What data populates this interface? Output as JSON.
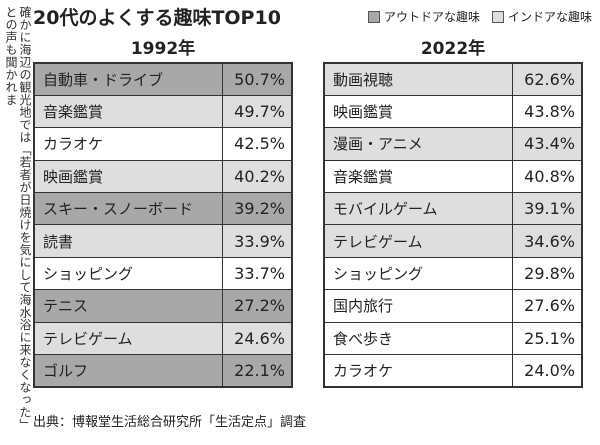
{
  "title": "20代のよくする趣味TOP10",
  "legend": [
    {
      "label": "アウトドアな趣味",
      "color": "#a8a8a8"
    },
    {
      "label": "インドアな趣味",
      "color": "#dedede"
    }
  ],
  "tables": [
    {
      "year": "1992年",
      "rows": [
        {
          "label": "自動車・ドライブ",
          "value": "50.7%",
          "color": "#a8a8a8"
        },
        {
          "label": "音楽鑑賞",
          "value": "49.7%",
          "color": "#dedede"
        },
        {
          "label": "カラオケ",
          "value": "42.5%",
          "color": "#ffffff"
        },
        {
          "label": "映画鑑賞",
          "value": "40.2%",
          "color": "#dedede"
        },
        {
          "label": "スキー・スノーボード",
          "value": "39.2%",
          "color": "#a8a8a8"
        },
        {
          "label": "読書",
          "value": "33.9%",
          "color": "#dedede"
        },
        {
          "label": "ショッピング",
          "value": "33.7%",
          "color": "#ffffff"
        },
        {
          "label": "テニス",
          "value": "27.2%",
          "color": "#a8a8a8"
        },
        {
          "label": "テレビゲーム",
          "value": "24.6%",
          "color": "#dedede"
        },
        {
          "label": "ゴルフ",
          "value": "22.1%",
          "color": "#a8a8a8"
        }
      ]
    },
    {
      "year": "2022年",
      "rows": [
        {
          "label": "動画視聴",
          "value": "62.6%",
          "color": "#dedede"
        },
        {
          "label": "映画鑑賞",
          "value": "43.8%",
          "color": "#ffffff"
        },
        {
          "label": "漫画・アニメ",
          "value": "43.4%",
          "color": "#dedede"
        },
        {
          "label": "音楽鑑賞",
          "value": "40.8%",
          "color": "#ffffff"
        },
        {
          "label": "モバイルゲーム",
          "value": "39.1%",
          "color": "#dedede"
        },
        {
          "label": "テレビゲーム",
          "value": "34.6%",
          "color": "#dedede"
        },
        {
          "label": "ショッピング",
          "value": "29.8%",
          "color": "#ffffff"
        },
        {
          "label": "国内旅行",
          "value": "27.6%",
          "color": "#ffffff"
        },
        {
          "label": "食べ歩き",
          "value": "25.1%",
          "color": "#ffffff"
        },
        {
          "label": "カラオケ",
          "value": "24.0%",
          "color": "#ffffff"
        }
      ]
    }
  ],
  "source": "出典：博報堂生活総合研究所「生活定点」調査",
  "side_text": "確かに海辺の観光地では「若者が日焼けを気にして海水浴に来なくなった」との声も聞かれま"
}
